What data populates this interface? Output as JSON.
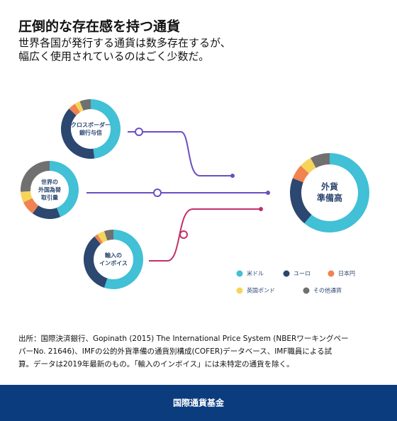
{
  "title": "圧倒的な存在感を持つ通貨",
  "subtitle": [
    "世界各国が発行する通貨は数多存在するが、",
    "幅広く使用されているのはごく少数だ。"
  ],
  "legend": [
    {
      "name": "米ドル",
      "color": "#41c0d6"
    },
    {
      "name": "ユーロ",
      "color": "#2c4770"
    },
    {
      "name": "日本円",
      "color": "#f0834f"
    },
    {
      "name": "英国ポンド",
      "color": "#f6d45a"
    },
    {
      "name": "その他通貨",
      "color": "#707070"
    }
  ],
  "chart_data": [
    {
      "type": "donut",
      "title": [
        "クロスボーダー",
        "銀行与信"
      ],
      "values": [
        48,
        39,
        4,
        3,
        6
      ]
    },
    {
      "type": "donut",
      "title": [
        "世界の",
        "外国為替",
        "取引量"
      ],
      "values": [
        44,
        16,
        8,
        6,
        26
      ]
    },
    {
      "type": "donut",
      "title": [
        "輸入の",
        "インボイス"
      ],
      "values": [
        55,
        34,
        2,
        4,
        5
      ]
    },
    {
      "type": "donut",
      "title": [
        "外貨",
        "準備高"
      ],
      "values": [
        61,
        20,
        6,
        5,
        8
      ]
    }
  ],
  "source": [
    "出所：国際決済銀行、Gopinath (2015) The International Price System (NBERワーキングペー",
    "パーNo. 21646)、IMFの公的外貨準備の通貨別構成(COFER)データベース、IMF職員による試",
    "算。データは2019年最新のもの。「輸入のインボイス」には未特定の通貨を除く。"
  ],
  "footer": "国際通貨基金"
}
